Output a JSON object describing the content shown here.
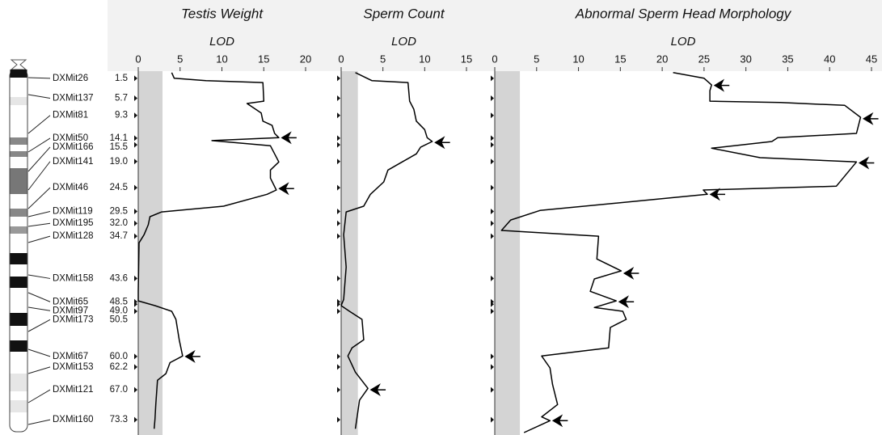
{
  "markers": [
    {
      "name": "DXMit26",
      "position": {
        "value": 1.5,
        "label": "1.5"
      }
    },
    {
      "name": "DXMit137",
      "position": {
        "value": 5.7,
        "label": "5.7"
      }
    },
    {
      "name": "DXMit81",
      "position": {
        "value": 9.3,
        "label": "9.3"
      }
    },
    {
      "name": "DXMit50",
      "position": {
        "value": 14.1,
        "label": "14.1"
      }
    },
    {
      "name": "DXMit166",
      "position": {
        "value": 15.5,
        "label": "15.5"
      }
    },
    {
      "name": "DXMit141",
      "position": {
        "value": 19.0,
        "label": "19.0"
      }
    },
    {
      "name": "DXMit46",
      "position": {
        "value": 24.5,
        "label": "24.5"
      }
    },
    {
      "name": "DXMit119",
      "position": {
        "value": 29.5,
        "label": "29.5"
      }
    },
    {
      "name": "DXMit195",
      "position": {
        "value": 32.0,
        "label": "32.0"
      }
    },
    {
      "name": "DXMit128",
      "position": {
        "value": 34.7,
        "label": "34.7"
      }
    },
    {
      "name": "DXMit158",
      "position": {
        "value": 43.6,
        "label": "43.6"
      }
    },
    {
      "name": "DXMit65",
      "position": {
        "value": 48.5,
        "label": "48.5"
      }
    },
    {
      "name": "DXMit97",
      "position": {
        "value": 49.0,
        "label": "49.0"
      }
    },
    {
      "name": "DXMit173",
      "position": {
        "value": 50.5,
        "label": "50.5"
      }
    },
    {
      "name": "DXMit67",
      "position": {
        "value": 60.0,
        "label": "60.0"
      }
    },
    {
      "name": "DXMit153",
      "position": {
        "value": 62.2,
        "label": "62.2"
      }
    },
    {
      "name": "DXMit121",
      "position": {
        "value": 67.0,
        "label": "67.0"
      }
    },
    {
      "name": "DXMit160",
      "position": {
        "value": 73.3,
        "label": "73.3"
      }
    }
  ],
  "chart_data": [
    {
      "type": "line",
      "title": "Testis Weight",
      "xlabel": "LOD",
      "xlim": [
        0,
        20
      ],
      "xticks": [
        0,
        5,
        10,
        15,
        20
      ],
      "ylim": [
        0,
        76
      ],
      "threshold": 2.9,
      "color": "#000000",
      "positions": [
        0.3,
        1.5,
        2.0,
        2.4,
        6.3,
        6.8,
        8.8,
        10.5,
        11.4,
        13.1,
        14.0,
        14.6,
        15.7,
        17.4,
        19.1,
        20.8,
        22.5,
        25.0,
        25.9,
        28.4,
        29.6,
        30.6,
        32.3,
        34.4,
        36.1,
        46.3,
        48.3,
        49.3,
        50.5,
        52.2,
        56.5,
        59.9,
        61.3,
        63.6,
        65.0,
        70.1,
        73.2,
        75.2
      ],
      "values": [
        4.0,
        4.3,
        8.1,
        14.9,
        15.0,
        13.0,
        14.7,
        14.9,
        16.0,
        16.3,
        16.8,
        8.8,
        15.8,
        16.3,
        16.8,
        15.8,
        15.8,
        16.5,
        15.4,
        10.2,
        2.8,
        1.4,
        1.2,
        0.7,
        0.1,
        0,
        0,
        2.0,
        4.0,
        4.5,
        4.9,
        5.3,
        3.8,
        3.3,
        2.3,
        2.1,
        2.0,
        1.9
      ],
      "arrows": [
        {
          "x": 16.8,
          "y": 14.0
        },
        {
          "x": 16.5,
          "y": 24.7
        },
        {
          "x": 5.3,
          "y": 60.0
        }
      ]
    },
    {
      "type": "line",
      "title": "Sperm Count",
      "xlabel": "LOD",
      "xlim": [
        0,
        15
      ],
      "xticks": [
        0,
        5,
        10,
        15
      ],
      "ylim": [
        0,
        76
      ],
      "threshold": 2.0,
      "color": "#000000",
      "positions": [
        0.3,
        2.0,
        2.4,
        6.3,
        8.0,
        10.5,
        12.3,
        14.0,
        14.8,
        16.0,
        17.4,
        19.1,
        20.8,
        23.3,
        25.9,
        28.4,
        29.6,
        34.4,
        41.2,
        48.0,
        49.3,
        50.5,
        52.2,
        56.5,
        58.2,
        59.9,
        63.3,
        66.7,
        69.2,
        75.2
      ],
      "values": [
        1.7,
        3.7,
        8.0,
        8.2,
        8.7,
        9.0,
        10.0,
        10.3,
        10.9,
        9.5,
        9.0,
        7.3,
        5.6,
        5.1,
        3.5,
        2.7,
        0.6,
        0.3,
        0.6,
        0.3,
        0,
        1.0,
        2.5,
        2.7,
        1.3,
        0.8,
        1.7,
        3.2,
        2.2,
        1.7
      ],
      "arrows": [
        {
          "x": 10.9,
          "y": 15.0
        },
        {
          "x": 3.2,
          "y": 67.0
        }
      ]
    },
    {
      "type": "line",
      "title": "Abnormal Sperm Head Morphology",
      "xlabel": "LOD",
      "xlim": [
        0,
        45
      ],
      "xticks": [
        0,
        5,
        10,
        15,
        20,
        25,
        30,
        35,
        40,
        45
      ],
      "ylim": [
        0,
        76
      ],
      "threshold": 3.0,
      "color": "#000000",
      "positions": [
        0.3,
        1.5,
        2.9,
        4.1,
        6.3,
        6.6,
        7.2,
        9.7,
        13.1,
        14.0,
        14.8,
        16.2,
        18.2,
        19.1,
        24.2,
        25.0,
        25.9,
        29.3,
        31.3,
        33.5,
        34.7,
        39.5,
        42.0,
        43.7,
        46.3,
        48.3,
        49.7,
        50.5,
        52.2,
        53.9,
        58.2,
        59.9,
        62.4,
        65.9,
        70.1,
        72.7,
        73.5,
        76.0
      ],
      "values": [
        21.3,
        25.0,
        25.9,
        25.7,
        25.7,
        34.1,
        41.8,
        43.7,
        43.2,
        33.8,
        33.1,
        25.9,
        31.7,
        43.2,
        40.8,
        24.9,
        25.4,
        5.4,
        1.9,
        0.8,
        12.4,
        12.2,
        15.1,
        11.9,
        11.4,
        14.5,
        11.9,
        15.3,
        15.7,
        13.8,
        13.6,
        5.6,
        6.6,
        6.9,
        7.5,
        5.6,
        6.6,
        3.5
      ],
      "arrows": [
        {
          "x": 25.9,
          "y": 3.0
        },
        {
          "x": 43.7,
          "y": 10.0
        },
        {
          "x": 43.2,
          "y": 19.3
        },
        {
          "x": 25.4,
          "y": 25.9
        },
        {
          "x": 15.1,
          "y": 42.5
        },
        {
          "x": 14.5,
          "y": 48.5
        },
        {
          "x": 6.6,
          "y": 73.5
        }
      ]
    }
  ]
}
